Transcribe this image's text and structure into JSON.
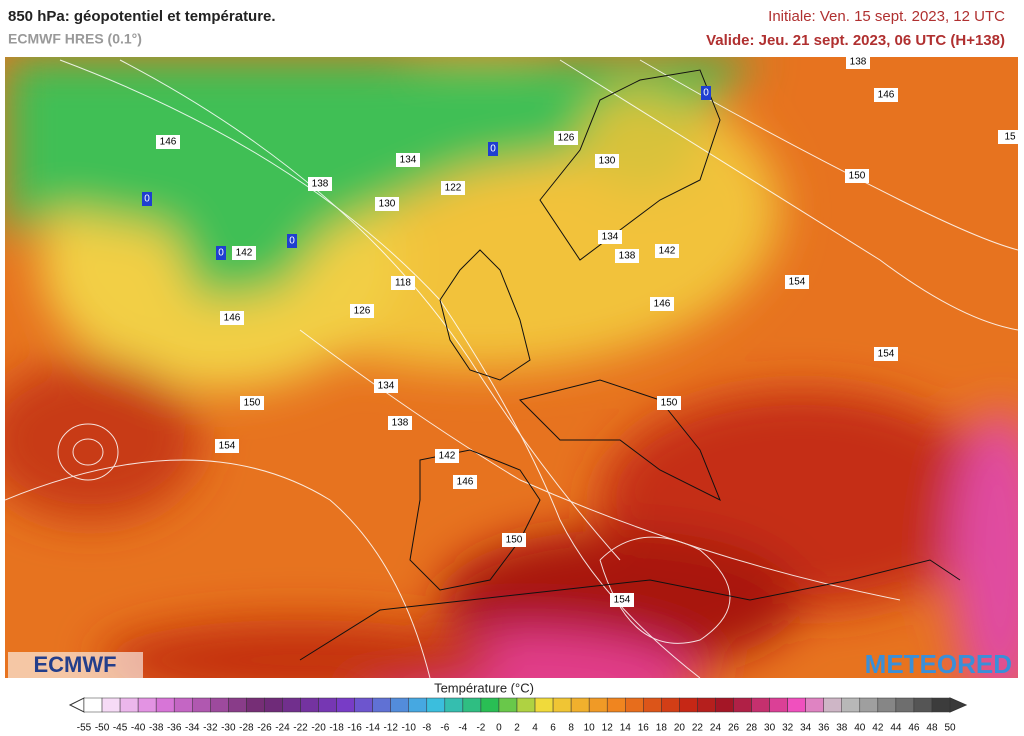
{
  "header": {
    "title": "850 hPa: géopotentiel et température.",
    "subtitle": "ECMWF HRES (0.1°)",
    "initial": "Initiale: Ven. 15 sept. 2023, 12 UTC",
    "valid": "Valide: Jeu. 21 sept. 2023, 06 UTC (H+138)"
  },
  "map": {
    "contour_labels": [
      "138",
      "146",
      "15",
      "146",
      "126",
      "134",
      "130",
      "138",
      "122",
      "150",
      "130",
      "142",
      "134",
      "142",
      "138",
      "118",
      "154",
      "126",
      "146",
      "146",
      "154",
      "134",
      "150",
      "150",
      "138",
      "154",
      "142",
      "146",
      "150",
      "154"
    ],
    "zero_labels": [
      "0",
      "0",
      "0",
      "0",
      "0"
    ]
  },
  "legend": {
    "title": "Température (°C)",
    "labels": [
      "-55",
      "-50",
      "-45",
      "-40",
      "-38",
      "-36",
      "-34",
      "-32",
      "-30",
      "-28",
      "-26",
      "-24",
      "-22",
      "-20",
      "-18",
      "-16",
      "-14",
      "-12",
      "-10",
      "-8",
      "-6",
      "-4",
      "-2",
      "0",
      "2",
      "4",
      "6",
      "8",
      "10",
      "12",
      "14",
      "16",
      "18",
      "20",
      "22",
      "24",
      "26",
      "28",
      "30",
      "32",
      "34",
      "36",
      "38",
      "40",
      "42",
      "44",
      "46",
      "48",
      "50"
    ]
  },
  "logos": {
    "left": "ECMWF",
    "right": "METEORED"
  }
}
